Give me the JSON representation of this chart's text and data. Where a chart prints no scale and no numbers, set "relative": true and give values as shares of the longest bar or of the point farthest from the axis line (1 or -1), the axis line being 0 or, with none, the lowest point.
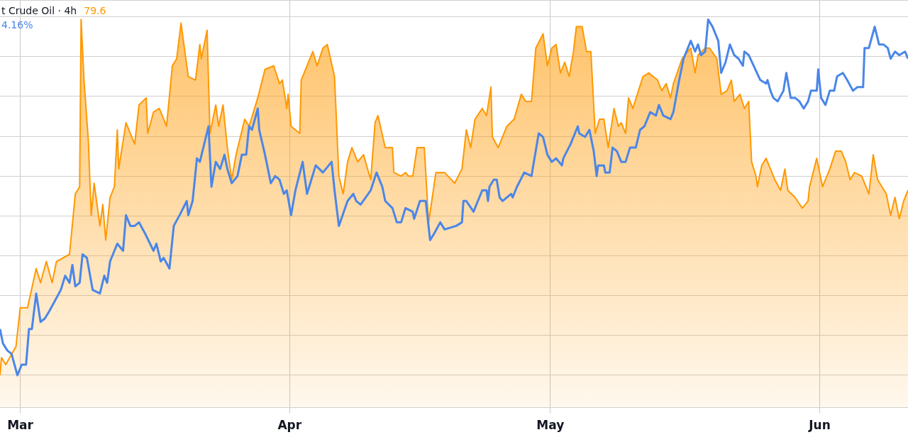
{
  "chart_data": {
    "type": "area",
    "title": "t Crude Oil · 4h",
    "relative": true,
    "grid": true,
    "legend": false,
    "marker": "none",
    "line_style": "solid",
    "annotations": [
      "79.6",
      "4.16%"
    ],
    "xlim": [
      "--02-26T16:00",
      "--06-11T04:00"
    ],
    "xticks": [
      {
        "value": "--03-01",
        "label": "Mar"
      },
      {
        "value": "--04-01",
        "label": "Apr"
      },
      {
        "value": "--05-01",
        "label": "May"
      },
      {
        "value": "--06-01",
        "label": "Jun"
      }
    ],
    "series": [
      {
        "color": "#ff9800",
        "x": [
          "--02-26T16:00",
          "--02-26T20:00",
          "--02-27T08:00",
          "--02-28T00:00",
          "--02-28T12:00",
          "--03-01T00:00",
          "--03-01T20:00",
          "--03-02T20:00",
          "--03-03T08:00",
          "--03-04T00:00",
          "--03-04T16:00",
          "--03-05T04:00",
          "--03-06T16:00",
          "--03-07T08:00",
          "--03-07T20:00",
          "--03-08T00:00",
          "--03-08T08:00",
          "--03-08T20:00",
          "--03-09T04:00",
          "--03-09T12:00",
          "--03-10T04:00",
          "--03-10T12:00",
          "--03-10T20:00",
          "--03-11T08:00",
          "--03-11T20:00",
          "--03-12T04:00",
          "--03-12T08:00",
          "--03-13T04:00",
          "--03-14T04:00",
          "--03-14T16:00",
          "--03-15T12:00",
          "--03-15T16:00",
          "--03-16T08:00",
          "--03-17T00:00",
          "--03-17T20:00",
          "--03-18T12:00",
          "--03-19T00:00",
          "--03-19T12:00",
          "--03-20T08:00",
          "--03-21T04:00",
          "--03-21T16:00",
          "--03-21T20:00",
          "--03-22T12:00",
          "--03-22T20:00",
          "--03-23T12:00",
          "--03-23T20:00",
          "--03-24T08:00",
          "--03-24T20:00",
          "--03-25T08:00",
          "--03-25T20:00",
          "--03-26T20:00",
          "--03-27T08:00",
          "--03-28T08:00",
          "--03-29T04:00",
          "--03-30T04:00",
          "--03-30T20:00",
          "--03-31T04:00",
          "--03-31T16:00",
          "--03-31T20:00",
          "--04-01T04:00",
          "--04-02T04:00",
          "--04-02T08:00",
          "--04-03T00:00",
          "--04-03T16:00",
          "--04-04T04:00",
          "--04-04T20:00",
          "--04-05T08:00",
          "--04-06T04:00",
          "--04-06T16:00",
          "--04-07T04:00",
          "--04-07T16:00",
          "--04-08T04:00",
          "--04-08T20:00",
          "--04-09T12:00",
          "--04-10T08:00",
          "--04-10T20:00",
          "--04-11T04:00",
          "--04-12T00:00",
          "--04-12T20:00",
          "--04-13T00:00",
          "--04-13T20:00",
          "--04-14T08:00",
          "--04-14T16:00",
          "--04-15T04:00",
          "--04-15T16:00",
          "--04-16T12:00",
          "--04-17T00:00",
          "--04-17T20:00",
          "--04-18T20:00",
          "--04-20T00:00",
          "--04-20T20:00",
          "--04-21T08:00",
          "--04-21T20:00",
          "--04-22T08:00",
          "--04-23T04:00",
          "--04-23T16:00",
          "--04-24T04:00",
          "--04-24T08:00",
          "--04-25T00:00",
          "--04-26T00:00",
          "--04-26T20:00",
          "--04-27T16:00",
          "--04-28T04:00",
          "--04-28T20:00",
          "--04-29T08:00",
          "--04-30T04:00",
          "--04-30T16:00",
          "--05-01T04:00",
          "--05-01T16:00",
          "--05-02T04:00",
          "--05-02T16:00",
          "--05-03T04:00",
          "--05-03T16:00",
          "--05-04T00:00",
          "--05-04T16:00",
          "--05-05T04:00",
          "--05-05T16:00",
          "--05-06T04:00",
          "--05-06T16:00",
          "--05-07T04:00",
          "--05-07T16:00",
          "--05-08T08:00",
          "--05-08T20:00",
          "--05-09T04:00",
          "--05-09T16:00",
          "--05-10T00:00",
          "--05-10T12:00",
          "--05-11T16:00",
          "--05-12T08:00",
          "--05-13T08:00",
          "--05-13T20:00",
          "--05-14T08:00",
          "--05-14T20:00",
          "--05-15T04:00",
          "--05-16T04:00",
          "--05-17T04:00",
          "--05-17T16:00",
          "--05-18T00:00",
          "--05-18T20:00",
          "--05-19T08:00",
          "--05-20T04:00",
          "--05-20T16:00",
          "--05-21T08:00",
          "--05-21T20:00",
          "--05-22T04:00",
          "--05-22T20:00",
          "--05-23T08:00",
          "--05-23T20:00",
          "--05-24T04:00",
          "--05-24T16:00",
          "--05-24T20:00",
          "--05-25T08:00",
          "--05-25T20:00",
          "--05-26T20:00",
          "--05-27T12:00",
          "--05-28T00:00",
          "--05-28T08:00",
          "--05-29T04:00",
          "--05-30T00:00",
          "--05-30T16:00",
          "--05-30T20:00",
          "--05-31T16:00",
          "--06-01T08:00",
          "--06-02T04:00",
          "--06-02T20:00",
          "--06-03T12:00",
          "--06-04T00:00",
          "--06-04T12:00",
          "--06-05T00:00",
          "--06-05T20:00",
          "--06-06T16:00",
          "--06-07T04:00",
          "--06-07T16:00",
          "--06-08T16:00",
          "--06-09T04:00",
          "--06-09T16:00",
          "--06-10T04:00",
          "--06-10T16:00",
          "--06-11T04:00"
        ],
        "values": [
          0.0,
          0.05,
          0.03,
          0.06,
          0.08,
          0.19,
          0.19,
          0.3,
          0.26,
          0.32,
          0.26,
          0.32,
          0.34,
          0.51,
          0.53,
          1.0,
          0.83,
          0.66,
          0.45,
          0.54,
          0.42,
          0.48,
          0.38,
          0.5,
          0.53,
          0.69,
          0.58,
          0.71,
          0.65,
          0.76,
          0.78,
          0.68,
          0.74,
          0.75,
          0.7,
          0.87,
          0.89,
          0.99,
          0.84,
          0.83,
          0.93,
          0.89,
          0.97,
          0.68,
          0.76,
          0.7,
          0.76,
          0.64,
          0.55,
          0.62,
          0.72,
          0.7,
          0.78,
          0.86,
          0.87,
          0.82,
          0.83,
          0.75,
          0.79,
          0.7,
          0.68,
          0.83,
          0.87,
          0.91,
          0.87,
          0.92,
          0.93,
          0.84,
          0.56,
          0.51,
          0.6,
          0.64,
          0.6,
          0.62,
          0.55,
          0.71,
          0.73,
          0.64,
          0.64,
          0.57,
          0.56,
          0.57,
          0.56,
          0.56,
          0.64,
          0.64,
          0.43,
          0.57,
          0.57,
          0.54,
          0.58,
          0.69,
          0.64,
          0.72,
          0.75,
          0.73,
          0.81,
          0.67,
          0.64,
          0.7,
          0.72,
          0.79,
          0.77,
          0.77,
          0.92,
          0.96,
          0.87,
          0.92,
          0.93,
          0.85,
          0.88,
          0.84,
          0.91,
          0.98,
          0.98,
          0.91,
          0.91,
          0.68,
          0.72,
          0.72,
          0.64,
          0.75,
          0.7,
          0.71,
          0.68,
          0.78,
          0.75,
          0.84,
          0.85,
          0.83,
          0.8,
          0.82,
          0.78,
          0.82,
          0.89,
          0.92,
          0.85,
          0.9,
          0.92,
          0.92,
          0.89,
          0.79,
          0.8,
          0.83,
          0.77,
          0.79,
          0.75,
          0.77,
          0.6,
          0.56,
          0.53,
          0.59,
          0.61,
          0.55,
          0.52,
          0.58,
          0.52,
          0.5,
          0.47,
          0.49,
          0.53,
          0.61,
          0.53,
          0.58,
          0.63,
          0.63,
          0.6,
          0.55,
          0.57,
          0.56,
          0.51,
          0.62,
          0.55,
          0.51,
          0.45,
          0.5,
          0.44,
          0.49,
          0.52
        ]
      },
      {
        "type": "line",
        "color": "#4a86e8",
        "x": [
          "--02-26T16:00",
          "--02-27T00:00",
          "--02-27T12:00",
          "--02-28T00:00",
          "--02-28T16:00",
          "--03-01T04:00",
          "--03-01T16:00",
          "--03-02T00:00",
          "--03-02T08:00",
          "--03-02T20:00",
          "--03-03T08:00",
          "--03-03T20:00",
          "--03-04T08:00",
          "--03-05T16:00",
          "--03-06T04:00",
          "--03-06T16:00",
          "--03-07T00:00",
          "--03-07T08:00",
          "--03-07T20:00",
          "--03-08T04:00",
          "--03-08T16:00",
          "--03-09T08:00",
          "--03-10T04:00",
          "--03-10T16:00",
          "--03-11T00:00",
          "--03-11T08:00",
          "--03-12T04:00",
          "--03-12T20:00",
          "--03-13T04:00",
          "--03-13T16:00",
          "--03-14T04:00",
          "--03-14T16:00",
          "--03-15T08:00",
          "--03-16T08:00",
          "--03-16T16:00",
          "--03-17T04:00",
          "--03-17T12:00",
          "--03-18T04:00",
          "--03-18T16:00",
          "--03-19T08:00",
          "--03-20T04:00",
          "--03-20T08:00",
          "--03-20T20:00",
          "--03-21T08:00",
          "--03-21T16:00",
          "--03-22T16:00",
          "--03-23T00:00",
          "--03-23T12:00",
          "--03-24T00:00",
          "--03-24T12:00",
          "--03-24T20:00",
          "--03-25T08:00",
          "--03-26T00:00",
          "--03-26T12:00",
          "--03-27T00:00",
          "--03-27T08:00",
          "--03-27T16:00",
          "--03-28T08:00",
          "--03-28T12:00",
          "--03-29T04:00",
          "--03-29T20:00",
          "--03-30T08:00",
          "--03-30T20:00",
          "--03-31T08:00",
          "--03-31T16:00",
          "--04-01T04:00",
          "--04-01T16:00",
          "--04-02T12:00",
          "--04-03T00:00",
          "--04-04T00:00",
          "--04-04T20:00",
          "--04-05T20:00",
          "--04-06T04:00",
          "--04-06T16:00",
          "--04-07T16:00",
          "--04-08T08:00",
          "--04-08T16:00",
          "--04-09T04:00",
          "--04-10T08:00",
          "--04-11T00:00",
          "--04-11T16:00",
          "--04-12T00:00",
          "--04-12T20:00",
          "--04-13T08:00",
          "--04-13T20:00",
          "--04-14T08:00",
          "--04-15T04:00",
          "--04-15T08:00",
          "--04-16T00:00",
          "--04-16T16:00",
          "--04-17T04:00",
          "--04-17T16:00",
          "--04-18T08:00",
          "--04-18T20:00",
          "--04-20T04:00",
          "--04-20T20:00",
          "--04-21T00:00",
          "--04-21T08:00",
          "--04-22T04:00",
          "--04-22T16:00",
          "--04-23T04:00",
          "--04-23T16:00",
          "--04-23T20:00",
          "--04-24T00:00",
          "--04-24T12:00",
          "--04-24T20:00",
          "--04-25T04:00",
          "--04-25T12:00",
          "--04-26T12:00",
          "--04-26T16:00",
          "--04-27T04:00",
          "--04-28T00:00",
          "--04-28T20:00",
          "--04-29T16:00",
          "--04-30T04:00",
          "--04-30T16:00",
          "--05-01T04:00",
          "--05-01T16:00",
          "--05-02T08:00",
          "--05-02T12:00",
          "--05-03T08:00",
          "--05-04T04:00",
          "--05-04T08:00",
          "--05-05T00:00",
          "--05-05T12:00",
          "--05-06T00:00",
          "--05-06T08:00",
          "--05-06T12:00",
          "--05-07T04:00",
          "--05-07T08:00",
          "--05-07T20:00",
          "--05-08T04:00",
          "--05-08T16:00",
          "--05-09T04:00",
          "--05-09T16:00",
          "--05-10T04:00",
          "--05-10T20:00",
          "--05-11T08:00",
          "--05-11T20:00",
          "--05-12T12:00",
          "--05-13T04:00",
          "--05-13T12:00",
          "--05-14T00:00",
          "--05-14T20:00",
          "--05-15T04:00",
          "--05-15T20:00",
          "--05-16T08:00",
          "--05-17T04:00",
          "--05-17T16:00",
          "--05-18T00:00",
          "--05-18T08:00",
          "--05-18T20:00",
          "--05-19T04:00",
          "--05-19T16:00",
          "--05-20T00:00",
          "--05-20T08:00",
          "--05-20T16:00",
          "--05-21T04:00",
          "--05-21T16:00",
          "--05-22T04:00",
          "--05-22T16:00",
          "--05-23T04:00",
          "--05-23T08:00",
          "--05-23T20:00",
          "--05-25T04:00",
          "--05-25T20:00",
          "--05-26T00:00",
          "--05-26T08:00",
          "--05-26T16:00",
          "--05-27T04:00",
          "--05-27T20:00",
          "--05-28T04:00",
          "--05-28T16:00",
          "--05-29T04:00",
          "--05-29T16:00",
          "--05-30T04:00",
          "--05-30T16:00",
          "--05-31T00:00",
          "--05-31T16:00",
          "--05-31T20:00",
          "--06-01T04:00",
          "--06-01T16:00",
          "--06-02T04:00",
          "--06-02T16:00",
          "--06-03T00:00",
          "--06-03T16:00",
          "--06-04T04:00",
          "--06-04T20:00",
          "--06-05T08:00",
          "--06-06T00:00",
          "--06-06T04:00",
          "--06-06T16:00",
          "--06-07T08:00",
          "--06-07T20:00",
          "--06-08T08:00",
          "--06-08T20:00",
          "--06-09T04:00",
          "--06-09T16:00",
          "--06-10T04:00",
          "--06-10T20:00",
          "--06-11T04:00"
        ],
        "values": [
          0.13,
          0.09,
          0.07,
          0.06,
          0.0,
          0.03,
          0.03,
          0.13,
          0.13,
          0.23,
          0.15,
          0.16,
          0.18,
          0.24,
          0.28,
          0.26,
          0.31,
          0.25,
          0.26,
          0.34,
          0.33,
          0.24,
          0.23,
          0.28,
          0.26,
          0.32,
          0.37,
          0.35,
          0.45,
          0.42,
          0.42,
          0.43,
          0.4,
          0.35,
          0.37,
          0.32,
          0.33,
          0.3,
          0.42,
          0.45,
          0.49,
          0.45,
          0.49,
          0.61,
          0.6,
          0.7,
          0.53,
          0.6,
          0.58,
          0.62,
          0.58,
          0.54,
          0.56,
          0.62,
          0.62,
          0.7,
          0.69,
          0.75,
          0.69,
          0.62,
          0.54,
          0.56,
          0.55,
          0.51,
          0.52,
          0.45,
          0.52,
          0.6,
          0.51,
          0.59,
          0.57,
          0.6,
          0.52,
          0.42,
          0.49,
          0.51,
          0.49,
          0.48,
          0.52,
          0.57,
          0.53,
          0.49,
          0.47,
          0.43,
          0.43,
          0.47,
          0.46,
          0.44,
          0.49,
          0.49,
          0.38,
          0.4,
          0.43,
          0.41,
          0.42,
          0.43,
          0.49,
          0.49,
          0.46,
          0.49,
          0.52,
          0.52,
          0.49,
          0.53,
          0.55,
          0.55,
          0.5,
          0.49,
          0.51,
          0.5,
          0.53,
          0.57,
          0.56,
          0.68,
          0.67,
          0.62,
          0.6,
          0.61,
          0.59,
          0.61,
          0.65,
          0.7,
          0.68,
          0.67,
          0.69,
          0.63,
          0.56,
          0.59,
          0.59,
          0.57,
          0.57,
          0.64,
          0.63,
          0.6,
          0.6,
          0.64,
          0.64,
          0.69,
          0.7,
          0.74,
          0.73,
          0.76,
          0.73,
          0.72,
          0.74,
          0.83,
          0.89,
          0.94,
          0.91,
          0.93,
          0.9,
          0.91,
          1.0,
          0.98,
          0.96,
          0.94,
          0.85,
          0.88,
          0.93,
          0.9,
          0.89,
          0.87,
          0.91,
          0.9,
          0.83,
          0.82,
          0.83,
          0.8,
          0.78,
          0.77,
          0.8,
          0.85,
          0.78,
          0.78,
          0.77,
          0.75,
          0.77,
          0.8,
          0.8,
          0.86,
          0.78,
          0.76,
          0.8,
          0.8,
          0.84,
          0.85,
          0.83,
          0.8,
          0.81,
          0.81,
          0.92,
          0.92,
          0.98,
          0.93,
          0.93,
          0.92,
          0.89,
          0.91,
          0.9,
          0.91,
          0.89
        ]
      }
    ]
  }
}
